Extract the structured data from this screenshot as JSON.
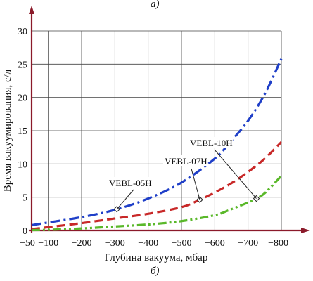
{
  "captions": {
    "top": "а)",
    "bottom": "б)"
  },
  "chart_data": {
    "type": "line",
    "xlabel": "Глубина вакуума, мбар",
    "ylabel": "Время вакуумирования, с/л",
    "xlim": [
      -50,
      -800
    ],
    "ylim": [
      0,
      30
    ],
    "x_ticks": [
      -50,
      -100,
      -200,
      -300,
      -400,
      -500,
      -600,
      -700,
      -800
    ],
    "x_tick_labels": [
      "−50",
      "−100",
      "−200",
      "−300",
      "−400",
      "−500",
      "−600",
      "−700",
      "−800"
    ],
    "y_ticks": [
      0,
      5,
      10,
      15,
      20,
      25,
      30
    ],
    "y_tick_labels": [
      "0",
      "5",
      "10",
      "15",
      "20",
      "25",
      "30"
    ],
    "grid": true,
    "series": [
      {
        "name": "VEBL-05H",
        "color": "#1f3fc8",
        "style": "dash-dot",
        "x": [
          -50,
          -100,
          -200,
          -300,
          -400,
          -500,
          -600,
          -650,
          -700,
          -750,
          -800
        ],
        "y": [
          0.8,
          1.2,
          2.0,
          3.1,
          4.8,
          7.2,
          10.8,
          13.5,
          16.5,
          20.5,
          25.8
        ],
        "marker_x": -306
      },
      {
        "name": "VEBL-07H",
        "color": "#c82828",
        "style": "dashed",
        "x": [
          -50,
          -100,
          -200,
          -300,
          -400,
          -500,
          -550,
          -600,
          -650,
          -700,
          -750,
          -800
        ],
        "y": [
          0.2,
          0.5,
          1.1,
          1.8,
          2.5,
          3.5,
          4.5,
          5.7,
          7.1,
          8.8,
          10.8,
          13.3
        ],
        "marker_x": -555
      },
      {
        "name": "VEBL-10H",
        "color": "#5ab82a",
        "style": "dash-dot-dot",
        "x": [
          -50,
          -100,
          -200,
          -300,
          -400,
          -500,
          -600,
          -650,
          -700,
          -725,
          -750,
          -800
        ],
        "y": [
          0.05,
          0.1,
          0.3,
          0.6,
          0.9,
          1.4,
          2.3,
          3.2,
          4.2,
          4.8,
          5.6,
          8.2
        ],
        "marker_x": -725
      }
    ],
    "annotations": [
      {
        "text": "VEBL-05H",
        "series": 0
      },
      {
        "text": "VEBL-07H",
        "series": 1
      },
      {
        "text": "VEBL-10H",
        "series": 2
      }
    ]
  }
}
